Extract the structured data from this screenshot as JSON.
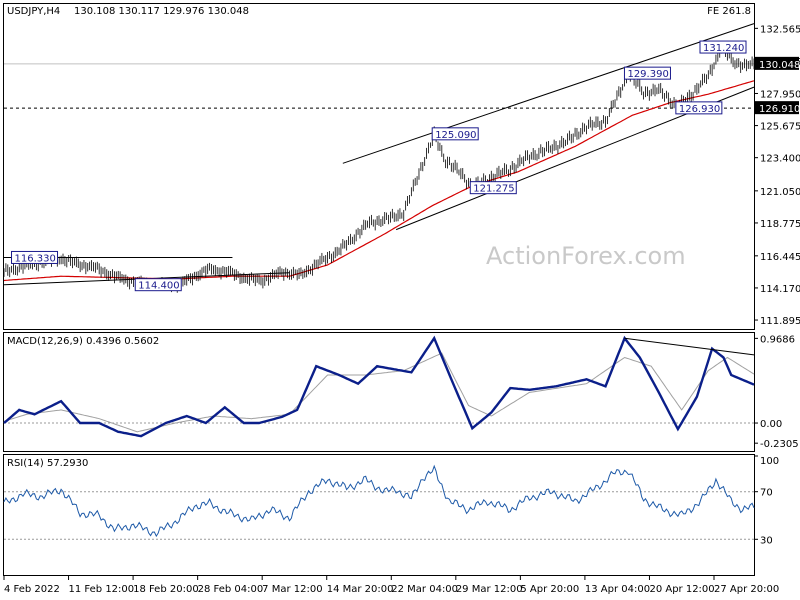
{
  "chart_data": {
    "type": "line",
    "symbol": "USDJPY,H4",
    "ohlc_header": "130.108 130.117 129.976 130.048",
    "fe_label": "FE 261.8",
    "watermark": "ActionForex.com",
    "price_axis": {
      "ylim": [
        111.26,
        134.29
      ],
      "ticks": [
        "132.565",
        "130.265",
        "127.950",
        "125.675",
        "123.400",
        "121.050",
        "118.775",
        "116.445",
        "114.170",
        "111.895"
      ],
      "last_price": "130.048",
      "hline_price": "126.910"
    },
    "x_ticks": [
      "4 Feb 2022",
      "11 Feb 12:00",
      "18 Feb 20:00",
      "28 Feb 04:00",
      "7 Mar 12:00",
      "14 Mar 20:00",
      "22 Mar 04:00",
      "29 Mar 12:00",
      "5 Apr 20:00",
      "13 Apr 04:00",
      "20 Apr 12:00",
      "27 Apr 20:00"
    ],
    "annotations": [
      {
        "label": "116.330",
        "x": 5,
        "y": 116.33
      },
      {
        "label": "114.400",
        "x": 70,
        "y": 114.4
      },
      {
        "label": "125.090",
        "x": 226,
        "y": 125.09
      },
      {
        "label": "121.275",
        "x": 246,
        "y": 121.275
      },
      {
        "label": "129.390",
        "x": 327,
        "y": 129.39
      },
      {
        "label": "126.930",
        "x": 354,
        "y": 126.93
      },
      {
        "label": "131.240",
        "x": 377,
        "y": 131.24
      }
    ],
    "price_anchors": [
      [
        0,
        115.3
      ],
      [
        10,
        115.7
      ],
      [
        20,
        116.0
      ],
      [
        30,
        116.25
      ],
      [
        38,
        115.9
      ],
      [
        48,
        115.6
      ],
      [
        58,
        115.0
      ],
      [
        68,
        114.6
      ],
      [
        80,
        114.5
      ],
      [
        92,
        114.4
      ],
      [
        100,
        115.0
      ],
      [
        108,
        115.5
      ],
      [
        118,
        115.3
      ],
      [
        128,
        114.8
      ],
      [
        136,
        114.7
      ],
      [
        146,
        115.3
      ],
      [
        156,
        115.1
      ],
      [
        166,
        116.0
      ],
      [
        176,
        116.8
      ],
      [
        184,
        117.8
      ],
      [
        192,
        118.8
      ],
      [
        200,
        119.0
      ],
      [
        210,
        119.5
      ],
      [
        218,
        122.3
      ],
      [
        226,
        125.0
      ],
      [
        232,
        123.2
      ],
      [
        240,
        122.3
      ],
      [
        246,
        121.3
      ],
      [
        256,
        122.0
      ],
      [
        266,
        122.6
      ],
      [
        276,
        123.5
      ],
      [
        286,
        124.0
      ],
      [
        296,
        124.6
      ],
      [
        306,
        125.6
      ],
      [
        316,
        126.0
      ],
      [
        324,
        128.2
      ],
      [
        328,
        129.4
      ],
      [
        336,
        128.0
      ],
      [
        344,
        128.2
      ],
      [
        354,
        127.0
      ],
      [
        362,
        128.0
      ],
      [
        370,
        129.2
      ],
      [
        377,
        131.2
      ],
      [
        383,
        130.2
      ],
      [
        390,
        129.9
      ],
      [
        394,
        130.05
      ]
    ],
    "ma_anchors": [
      [
        0,
        114.7
      ],
      [
        30,
        115.0
      ],
      [
        60,
        114.9
      ],
      [
        90,
        114.8
      ],
      [
        120,
        115.0
      ],
      [
        150,
        115.0
      ],
      [
        170,
        115.8
      ],
      [
        200,
        118.0
      ],
      [
        225,
        120.0
      ],
      [
        246,
        121.4
      ],
      [
        270,
        122.4
      ],
      [
        300,
        124.2
      ],
      [
        330,
        126.4
      ],
      [
        350,
        127.3
      ],
      [
        370,
        127.9
      ],
      [
        394,
        128.85
      ]
    ],
    "trendlines": [
      {
        "from": [
          0,
          114.4
        ],
        "to": [
          150,
          115.25
        ]
      },
      {
        "from": [
          0,
          116.33
        ],
        "to": [
          120,
          116.33
        ]
      },
      {
        "from": [
          178,
          123.0
        ],
        "to": [
          394,
          132.9
        ]
      },
      {
        "from": [
          206,
          118.3
        ],
        "to": [
          394,
          128.4
        ]
      }
    ],
    "macd": {
      "label": "MACD(12,26,9) 0.4396 0.5602",
      "ylim": [
        -0.32,
        1.03
      ],
      "ticks": [
        "0.9686",
        "0.00",
        "-0.2305"
      ],
      "macd_anchors": [
        [
          0,
          0.0
        ],
        [
          8,
          0.15
        ],
        [
          16,
          0.1
        ],
        [
          30,
          0.25
        ],
        [
          40,
          0.0
        ],
        [
          50,
          0.0
        ],
        [
          60,
          -0.1
        ],
        [
          72,
          -0.15
        ],
        [
          85,
          0.0
        ],
        [
          96,
          0.08
        ],
        [
          106,
          0.0
        ],
        [
          116,
          0.18
        ],
        [
          126,
          0.0
        ],
        [
          134,
          0.0
        ],
        [
          146,
          0.07
        ],
        [
          154,
          0.15
        ],
        [
          164,
          0.65
        ],
        [
          176,
          0.55
        ],
        [
          186,
          0.45
        ],
        [
          196,
          0.65
        ],
        [
          214,
          0.58
        ],
        [
          226,
          0.97
        ],
        [
          236,
          0.45
        ],
        [
          246,
          -0.06
        ],
        [
          256,
          0.12
        ],
        [
          266,
          0.4
        ],
        [
          276,
          0.38
        ],
        [
          290,
          0.42
        ],
        [
          306,
          0.5
        ],
        [
          316,
          0.42
        ],
        [
          326,
          0.97
        ],
        [
          334,
          0.75
        ],
        [
          344,
          0.35
        ],
        [
          354,
          -0.07
        ],
        [
          364,
          0.3
        ],
        [
          372,
          0.85
        ],
        [
          378,
          0.75
        ],
        [
          382,
          0.55
        ],
        [
          394,
          0.44
        ]
      ],
      "signal_anchors": [
        [
          0,
          0.02
        ],
        [
          12,
          0.1
        ],
        [
          30,
          0.15
        ],
        [
          50,
          0.05
        ],
        [
          70,
          -0.1
        ],
        [
          90,
          0.0
        ],
        [
          110,
          0.08
        ],
        [
          130,
          0.05
        ],
        [
          150,
          0.1
        ],
        [
          170,
          0.55
        ],
        [
          190,
          0.55
        ],
        [
          210,
          0.6
        ],
        [
          230,
          0.8
        ],
        [
          244,
          0.2
        ],
        [
          256,
          0.08
        ],
        [
          276,
          0.35
        ],
        [
          306,
          0.45
        ],
        [
          326,
          0.75
        ],
        [
          340,
          0.65
        ],
        [
          356,
          0.15
        ],
        [
          370,
          0.6
        ],
        [
          380,
          0.75
        ],
        [
          394,
          0.56
        ]
      ],
      "trendline": {
        "from": [
          326,
          0.97
        ],
        "to": [
          394,
          0.78
        ]
      }
    },
    "rsi": {
      "label": "RSI(14) 57.2930",
      "ylim": [
        0,
        100
      ],
      "ticks": [
        "100",
        "70",
        "30"
      ],
      "levels": [
        70,
        30
      ],
      "anchors": [
        [
          0,
          60
        ],
        [
          10,
          68
        ],
        [
          20,
          66
        ],
        [
          30,
          72
        ],
        [
          40,
          52
        ],
        [
          50,
          50
        ],
        [
          58,
          38
        ],
        [
          68,
          42
        ],
        [
          80,
          35
        ],
        [
          92,
          47
        ],
        [
          100,
          58
        ],
        [
          108,
          60
        ],
        [
          118,
          52
        ],
        [
          130,
          46
        ],
        [
          140,
          55
        ],
        [
          150,
          48
        ],
        [
          160,
          70
        ],
        [
          170,
          80
        ],
        [
          180,
          73
        ],
        [
          190,
          80
        ],
        [
          200,
          70
        ],
        [
          206,
          72
        ],
        [
          214,
          64
        ],
        [
          220,
          82
        ],
        [
          226,
          88
        ],
        [
          234,
          62
        ],
        [
          244,
          55
        ],
        [
          254,
          62
        ],
        [
          266,
          55
        ],
        [
          276,
          65
        ],
        [
          288,
          70
        ],
        [
          300,
          62
        ],
        [
          312,
          74
        ],
        [
          320,
          85
        ],
        [
          328,
          88
        ],
        [
          336,
          64
        ],
        [
          346,
          55
        ],
        [
          356,
          50
        ],
        [
          366,
          62
        ],
        [
          374,
          80
        ],
        [
          382,
          62
        ],
        [
          388,
          55
        ],
        [
          394,
          57.3
        ]
      ]
    }
  }
}
